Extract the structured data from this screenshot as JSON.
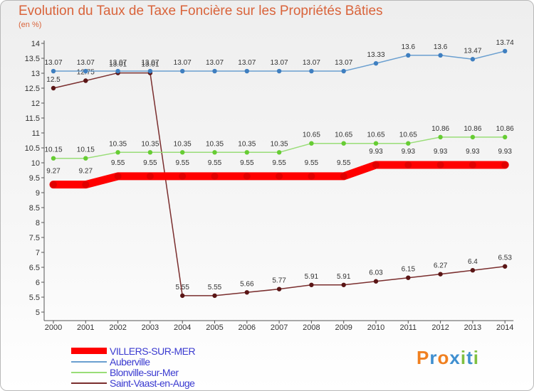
{
  "chart_data": {
    "type": "line",
    "title": "Evolution du Taux de Taxe Foncière sur les Propriétés Bâties",
    "subtitle": "(en %)",
    "categories": [
      "2000",
      "2001",
      "2002",
      "2003",
      "2004",
      "2005",
      "2006",
      "2007",
      "2008",
      "2009",
      "2010",
      "2011",
      "2012",
      "2013",
      "2014"
    ],
    "ylim": [
      5,
      14
    ],
    "yticks": [
      "5",
      "5.5",
      "6",
      "6.5",
      "7",
      "7.5",
      "8",
      "8.5",
      "9",
      "9.5",
      "10",
      "10.5",
      "11",
      "11.5",
      "12",
      "12.5",
      "13",
      "13.5",
      "14"
    ],
    "legend_position": "bottom-left",
    "series": [
      {
        "name": "VILLERS-SUR-MER",
        "color": "#ff0000",
        "marker": "#e00000",
        "values": [
          9.27,
          9.27,
          9.55,
          9.55,
          9.55,
          9.55,
          9.55,
          9.55,
          9.55,
          9.55,
          9.93,
          9.93,
          9.93,
          9.93,
          9.93
        ],
        "labels": [
          "9.27",
          "9.27",
          "9.55",
          "9.55",
          "9.55",
          "9.55",
          "9.55",
          "9.55",
          "9.55",
          "9.55",
          "9.93",
          "9.93",
          "9.93",
          "9.93",
          "9.93"
        ]
      },
      {
        "name": "Auberville",
        "color": "#6a9fd0",
        "marker": "#3f7fc0",
        "values": [
          13.07,
          13.07,
          13.07,
          13.07,
          13.07,
          13.07,
          13.07,
          13.07,
          13.07,
          13.07,
          13.33,
          13.6,
          13.6,
          13.47,
          13.74
        ],
        "labels": [
          "13.07",
          "13.07",
          "13.07",
          "13.07",
          "13.07",
          "13.07",
          "13.07",
          "13.07",
          "13.07",
          "13.07",
          "13.33",
          "13.6",
          "13.6",
          "13.47",
          "13.74"
        ]
      },
      {
        "name": "Blonville-sur-Mer",
        "color": "#99dd77",
        "marker": "#66cc33",
        "values": [
          10.15,
          10.15,
          10.35,
          10.35,
          10.35,
          10.35,
          10.35,
          10.35,
          10.65,
          10.65,
          10.65,
          10.65,
          10.86,
          10.86,
          10.86
        ],
        "labels": [
          "10.15",
          "10.15",
          "10.35",
          "10.35",
          "10.35",
          "10.35",
          "10.35",
          "10.35",
          "10.65",
          "10.65",
          "10.65",
          "10.65",
          "10.86",
          "10.86",
          "10.86"
        ]
      },
      {
        "name": "Saint-Vaast-en-Auge",
        "color": "#7a2e2e",
        "marker": "#5a1515",
        "values": [
          12.5,
          12.75,
          13.01,
          13.01,
          5.55,
          5.55,
          5.66,
          5.77,
          5.91,
          5.91,
          6.03,
          6.15,
          6.27,
          6.4,
          6.53
        ],
        "labels": [
          "12.5",
          "12.75",
          "13.01",
          "13.01",
          "5.55",
          "5.55",
          "5.66",
          "5.77",
          "5.91",
          "5.91",
          "6.03",
          "6.15",
          "6.27",
          "6.4",
          "6.53"
        ]
      }
    ]
  },
  "logo": {
    "text": "Proxiti"
  }
}
